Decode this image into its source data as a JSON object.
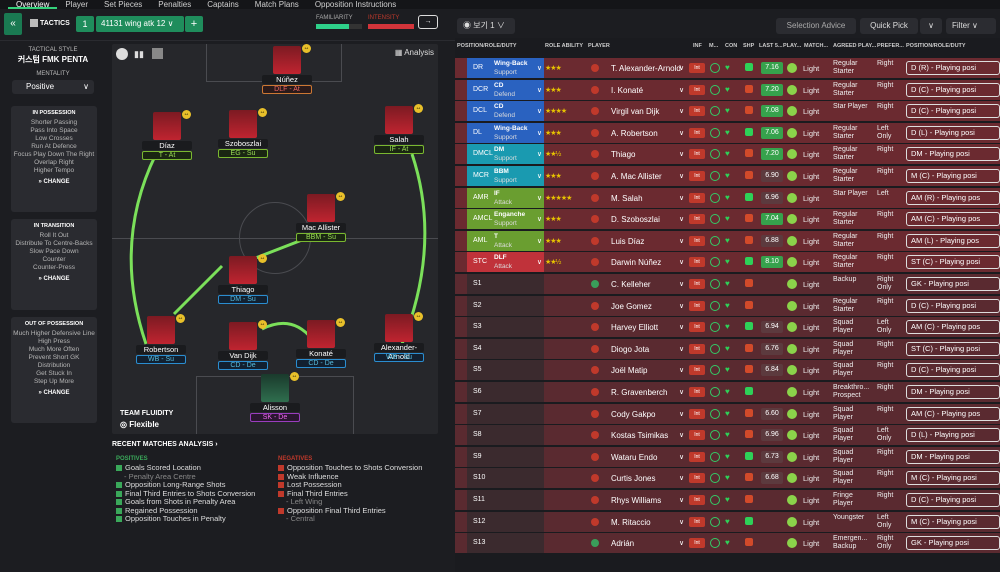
{
  "nav": {
    "tabs": [
      "Overview",
      "Player",
      "Set Pieces",
      "Penalties",
      "Captains",
      "Match Plans",
      "Opposition Instructions"
    ]
  },
  "toolbar": {
    "tactics": "TACTICS",
    "slot": "1",
    "tactic_name": "41131 wing atk 12 ∨",
    "plus": "+",
    "familiarity": "FAMILIARITY",
    "intensity": "INTENSITY",
    "view": "보기 1",
    "selection_advice": "Selection Advice",
    "quick_pick": "Quick Pick",
    "filter": "Filter"
  },
  "sidebar": {
    "style_label": "TACTICAL STYLE",
    "style_value": "커스텀 FMK PENTA",
    "mentality_label": "MENTALITY",
    "mentality_value": "Positive",
    "in_possession": {
      "title": "IN POSSESSION",
      "items": [
        "Shorter Passing",
        "Pass Into Space",
        "Low Crosses",
        "Run At Defence",
        "Focus Play Down The Right",
        "Overlap Right",
        "Higher Tempo"
      ]
    },
    "in_transition": {
      "title": "IN TRANSITION",
      "items": [
        "Roll It Out",
        "Distribute To Centre-Backs",
        "Slow Pace Down",
        "Counter",
        "Counter-Press"
      ]
    },
    "out_possession": {
      "title": "OUT OF POSSESSION",
      "items": [
        "Much Higher Defensive Line",
        "High Press",
        "Much More Often",
        "Prevent Short GK Distribution",
        "Get Stuck In",
        "Step Up More"
      ]
    },
    "change": "CHANGE"
  },
  "pitch": {
    "analysis": "Analysis",
    "fluidity_label": "TEAM FLUIDITY",
    "fluidity": "Flexible",
    "players": [
      {
        "name": "Núñez",
        "role": "DLF - At",
        "r": "att"
      },
      {
        "name": "Díaz",
        "role": "T - At",
        "r": "atk"
      },
      {
        "name": "Szoboszlai",
        "role": "EG - Su",
        "r": "atk"
      },
      {
        "name": "Salah",
        "role": "IF - At",
        "r": "atk"
      },
      {
        "name": "Mac Allister",
        "role": "BBM - Su",
        "r": "atk"
      },
      {
        "name": "Thiago",
        "role": "DM - Su",
        "r": "sup"
      },
      {
        "name": "Robertson",
        "role": "WB - Su",
        "r": "sup"
      },
      {
        "name": "Van Dijk",
        "role": "CD - De",
        "r": "sup"
      },
      {
        "name": "Konaté",
        "role": "CD - De",
        "r": "sup"
      },
      {
        "name": "Alexander-Arnold",
        "role": "WB - Su",
        "r": "sup"
      },
      {
        "name": "Alisson",
        "role": "SK - De",
        "r": "gkr"
      }
    ]
  },
  "analysis": {
    "title": "RECENT MATCHES ANALYSIS",
    "positives_label": "POSITIVES",
    "negatives_label": "NEGATIVES",
    "positives": [
      {
        "t": "Goals Scored Location",
        "s": "- Penalty Area Centre"
      },
      {
        "t": "Opposition Long-Range Shots",
        "s": ""
      },
      {
        "t": "Final Third Entries to Shots Conversion",
        "s": ""
      },
      {
        "t": "Goals from Shots in Penalty Area",
        "s": ""
      },
      {
        "t": "Regained Possession",
        "s": ""
      },
      {
        "t": "Opposition Touches in Penalty",
        "s": ""
      }
    ],
    "negatives": [
      {
        "t": "Opposition Touches to Shots Conversion",
        "s": ""
      },
      {
        "t": "Weak Influence",
        "s": ""
      },
      {
        "t": "Lost Possession",
        "s": ""
      },
      {
        "t": "Final Third Entries",
        "s": "- Left Wing"
      },
      {
        "t": "Opposition Final Third Entries",
        "s": "- Central"
      }
    ]
  },
  "table": {
    "headers": [
      "POSITION/ROLE/DUTY",
      "ROLE ABILITY",
      "PLAYER",
      "INF",
      "M...",
      "CON",
      "SHP",
      "LAST 5...",
      "PLAY...",
      "MATCH...",
      "AGREED PLAY...",
      "PREFER...",
      "POSITION/ROLE/DUTY"
    ],
    "rows": [
      {
        "code": "DR",
        "role": "Wing-Back",
        "duty": "Support",
        "c": "#2a62c0",
        "stars": "★★★",
        "name": "T. Alexander-Arnold",
        "rat": "7.16",
        "match": "Light",
        "agreed": "Regular Starter",
        "foot": "Right",
        "prp": "D (R) - Playing posi"
      },
      {
        "code": "DCR",
        "role": "CD",
        "duty": "Defend",
        "c": "#2a62c0",
        "stars": "★★★",
        "name": "I. Konaté",
        "rat": "7.20",
        "match": "Light",
        "agreed": "Regular Starter",
        "foot": "Right",
        "prp": "D (C) - Playing posi"
      },
      {
        "code": "DCL",
        "role": "CD",
        "duty": "Defend",
        "c": "#2a62c0",
        "stars": "★★★★",
        "name": "Virgil van Dijk",
        "rat": "7.08",
        "match": "Light",
        "agreed": "Star Player",
        "foot": "Right",
        "prp": "D (C) - Playing posi"
      },
      {
        "code": "DL",
        "role": "Wing-Back",
        "duty": "Support",
        "c": "#2a62c0",
        "stars": "★★★",
        "name": "A. Robertson",
        "rat": "7.06",
        "match": "Light",
        "agreed": "Regular Starter",
        "foot": "Left Only",
        "prp": "D (L) - Playing posi"
      },
      {
        "code": "DMCL",
        "role": "DM",
        "duty": "Support",
        "c": "#1a9ab0",
        "stars": "★★½",
        "name": "Thiago",
        "rat": "7.20",
        "match": "Light",
        "agreed": "Regular Starter",
        "foot": "Right",
        "prp": "DM - Playing posi"
      },
      {
        "code": "MCR",
        "role": "BBM",
        "duty": "Support",
        "c": "#1a9ab0",
        "stars": "★★★",
        "name": "A. Mac Allister",
        "rat": "6.90",
        "match": "Light",
        "agreed": "Regular Starter",
        "foot": "Right",
        "prp": "M (C) - Playing posi"
      },
      {
        "code": "AMR",
        "role": "IF",
        "duty": "Attack",
        "c": "#6a9e30",
        "stars": "★★★★★",
        "name": "M. Salah",
        "rat": "6.96",
        "match": "Light",
        "agreed": "Star Player",
        "foot": "Left",
        "prp": "AM (R) - Playing pos"
      },
      {
        "code": "AMCL",
        "role": "Enganche",
        "duty": "Support",
        "c": "#6a9e30",
        "stars": "★★★",
        "name": "D. Szoboszlai",
        "rat": "7.04",
        "match": "Light",
        "agreed": "Regular Starter",
        "foot": "Right",
        "prp": "AM (C) - Playing pos"
      },
      {
        "code": "AML",
        "role": "T",
        "duty": "Attack",
        "c": "#6a9e30",
        "stars": "★★★",
        "name": "Luis Díaz",
        "rat": "6.88",
        "match": "Light",
        "agreed": "Regular Starter",
        "foot": "Right",
        "prp": "AM (L) - Playing pos"
      },
      {
        "code": "STC",
        "role": "DLF",
        "duty": "Attack",
        "c": "#c0323a",
        "stars": "★★½",
        "name": "Darwin Núñez",
        "rat": "8.10",
        "match": "Light",
        "agreed": "Regular Starter",
        "foot": "Right",
        "prp": "ST (C) - Playing posi"
      },
      {
        "code": "S1",
        "role": "",
        "duty": "",
        "c": "",
        "stars": "",
        "name": "C. Kelleher",
        "rat": "",
        "match": "Light",
        "agreed": "Backup",
        "foot": "Right Only",
        "prp": "GK - Playing posi"
      },
      {
        "code": "S2",
        "role": "",
        "duty": "",
        "c": "",
        "stars": "",
        "name": "Joe Gomez",
        "rat": "",
        "match": "Light",
        "agreed": "Regular Starter",
        "foot": "Right",
        "prp": "D (C) - Playing posi"
      },
      {
        "code": "S3",
        "role": "",
        "duty": "",
        "c": "",
        "stars": "",
        "name": "Harvey Elliott",
        "rat": "6.94",
        "match": "Light",
        "agreed": "Squad Player",
        "foot": "Left Only",
        "prp": "AM (C) - Playing pos"
      },
      {
        "code": "S4",
        "role": "",
        "duty": "",
        "c": "",
        "stars": "",
        "name": "Diogo Jota",
        "rat": "6.76",
        "match": "Light",
        "agreed": "Squad Player",
        "foot": "Right",
        "prp": "ST (C) - Playing posi"
      },
      {
        "code": "S5",
        "role": "",
        "duty": "",
        "c": "",
        "stars": "",
        "name": "Joël Matip",
        "rat": "6.84",
        "match": "Light",
        "agreed": "Squad Player",
        "foot": "Right",
        "prp": "D (C) - Playing posi"
      },
      {
        "code": "S6",
        "role": "",
        "duty": "",
        "c": "",
        "stars": "",
        "name": "R. Gravenberch",
        "rat": "",
        "match": "Light",
        "agreed": "Breakthro... Prospect",
        "foot": "Right",
        "prp": "DM - Playing posi"
      },
      {
        "code": "S7",
        "role": "",
        "duty": "",
        "c": "",
        "stars": "",
        "name": "Cody Gakpo",
        "rat": "6.60",
        "match": "Light",
        "agreed": "Squad Player",
        "foot": "Right",
        "prp": "AM (C) - Playing pos"
      },
      {
        "code": "S8",
        "role": "",
        "duty": "",
        "c": "",
        "stars": "",
        "name": "Kostas Tsimikas",
        "rat": "6.96",
        "match": "Light",
        "agreed": "Squad Player",
        "foot": "Left Only",
        "prp": "D (L) - Playing posi"
      },
      {
        "code": "S9",
        "role": "",
        "duty": "",
        "c": "",
        "stars": "",
        "name": "Wataru Endo",
        "rat": "6.73",
        "match": "Light",
        "agreed": "Squad Player",
        "foot": "Right",
        "prp": "DM - Playing posi"
      },
      {
        "code": "S10",
        "role": "",
        "duty": "",
        "c": "",
        "stars": "",
        "name": "Curtis Jones",
        "rat": "6.68",
        "match": "Light",
        "agreed": "Squad Player",
        "foot": "Right",
        "prp": "M (C) - Playing posi"
      },
      {
        "code": "S11",
        "role": "",
        "duty": "",
        "c": "",
        "stars": "",
        "name": "Rhys Williams",
        "rat": "",
        "match": "Light",
        "agreed": "Fringe Player",
        "foot": "Right",
        "prp": "D (C) - Playing posi"
      },
      {
        "code": "S12",
        "role": "",
        "duty": "",
        "c": "",
        "stars": "",
        "name": "M. Ritaccio",
        "rat": "",
        "match": "Light",
        "agreed": "Youngster",
        "foot": "Left Only",
        "prp": "M (C) - Playing posi"
      },
      {
        "code": "S13",
        "role": "",
        "duty": "",
        "c": "",
        "stars": "",
        "name": "Adrián",
        "rat": "",
        "match": "Light",
        "agreed": "Emergen... Backup",
        "foot": "Right Only",
        "prp": "GK - Playing posi"
      }
    ]
  }
}
